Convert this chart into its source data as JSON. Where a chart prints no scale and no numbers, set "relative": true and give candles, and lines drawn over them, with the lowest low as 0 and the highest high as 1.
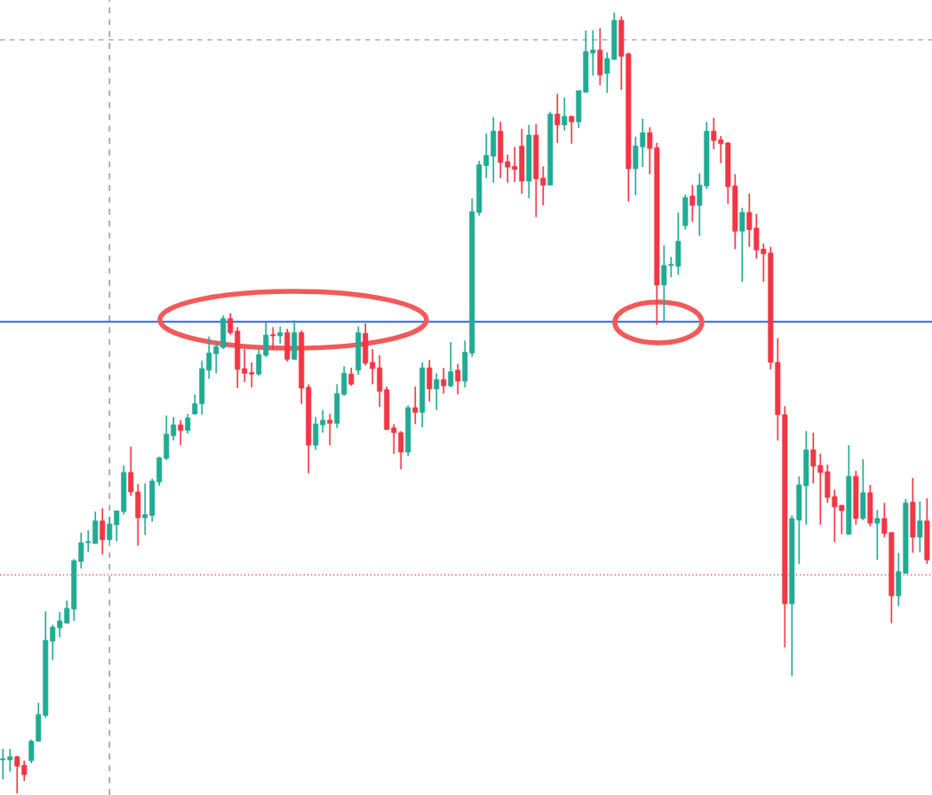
{
  "chart_data": {
    "type": "candlestick",
    "relative": true,
    "legend": false,
    "categories": [
      null,
      null,
      null,
      null,
      null,
      null,
      null,
      null,
      null,
      null,
      null,
      null,
      null,
      null,
      null,
      null,
      null,
      null,
      null,
      null,
      null,
      null,
      null,
      null,
      null,
      null,
      null,
      null,
      null,
      null,
      null,
      null,
      null,
      null,
      null,
      null,
      null,
      null,
      null,
      null,
      null,
      null,
      null,
      null,
      null,
      null,
      null,
      null,
      null,
      null,
      null,
      null,
      null,
      null,
      null,
      null,
      null,
      null,
      null,
      null,
      null,
      null,
      null,
      null,
      null,
      null,
      null,
      null,
      null,
      null,
      null,
      null,
      null,
      null,
      null,
      null,
      null,
      null,
      null,
      null,
      null,
      null,
      null,
      null,
      null,
      null,
      null,
      null,
      null,
      null,
      null,
      null,
      null,
      null,
      null,
      null,
      null,
      null,
      null,
      null,
      null,
      null,
      null,
      null,
      null,
      null,
      null,
      null,
      null,
      null,
      null,
      null,
      null,
      null,
      null,
      null,
      null,
      null,
      null,
      null,
      null,
      null,
      null,
      null,
      null,
      null,
      null,
      null,
      null,
      null,
      null
    ],
    "ohlc": [
      [
        0.043,
        0.057,
        0.018,
        0.043
      ],
      [
        0.043,
        0.057,
        0.028,
        0.047
      ],
      [
        0.047,
        0.048,
        0,
        0.035
      ],
      [
        0.036,
        0.042,
        0.016,
        0.024
      ],
      [
        0.042,
        0.069,
        0.039,
        0.067
      ],
      [
        0.067,
        0.116,
        0.066,
        0.101
      ],
      [
        0.1,
        0.233,
        0.097,
        0.196
      ],
      [
        0.195,
        0.216,
        0.171,
        0.213
      ],
      [
        0.212,
        0.232,
        0.2,
        0.221
      ],
      [
        0.218,
        0.247,
        0.218,
        0.237
      ],
      [
        0.236,
        0.3,
        0.221,
        0.298
      ],
      [
        0.297,
        0.334,
        0.288,
        0.321
      ],
      [
        0.321,
        0.337,
        0.309,
        0.321
      ],
      [
        0.32,
        0.361,
        0.32,
        0.349
      ],
      [
        0.349,
        0.365,
        0.306,
        0.325
      ],
      [
        0.325,
        0.354,
        0.323,
        0.345
      ],
      [
        0.344,
        0.362,
        0.323,
        0.362
      ],
      [
        0.361,
        0.42,
        0.357,
        0.411
      ],
      [
        0.411,
        0.444,
        0.381,
        0.386
      ],
      [
        0.386,
        0.396,
        0.317,
        0.353
      ],
      [
        0.353,
        0.397,
        0.331,
        0.357
      ],
      [
        0.356,
        0.403,
        0.348,
        0.4
      ],
      [
        0.399,
        0.431,
        0.394,
        0.43
      ],
      [
        0.429,
        0.484,
        0.427,
        0.46
      ],
      [
        0.458,
        0.482,
        0.452,
        0.472
      ],
      [
        0.472,
        0.478,
        0.446,
        0.465
      ],
      [
        0.465,
        0.486,
        0.461,
        0.481
      ],
      [
        0.486,
        0.511,
        0.485,
        0.499
      ],
      [
        0.499,
        0.554,
        0.485,
        0.544
      ],
      [
        0.542,
        0.585,
        0.531,
        0.564
      ],
      [
        0.563,
        0.579,
        0.538,
        0.572
      ],
      [
        0.571,
        0.612,
        0.569,
        0.608
      ],
      [
        0.608,
        0.615,
        0.587,
        0.59
      ],
      [
        0.592,
        0.597,
        0.519,
        0.543
      ],
      [
        0.544,
        0.569,
        0.527,
        0.538
      ],
      [
        0.539,
        0.552,
        0.52,
        0.537
      ],
      [
        0.537,
        0.568,
        0.535,
        0.562
      ],
      [
        0.561,
        0.603,
        0.559,
        0.587
      ],
      [
        0.587,
        0.597,
        0.568,
        0.586
      ],
      [
        0.586,
        0.598,
        0.576,
        0.59
      ],
      [
        0.59,
        0.595,
        0.553,
        0.556
      ],
      [
        0.556,
        0.606,
        0.555,
        0.59
      ],
      [
        0.59,
        0.593,
        0.499,
        0.519
      ],
      [
        0.52,
        0.524,
        0.41,
        0.446
      ],
      [
        0.446,
        0.482,
        0.44,
        0.473
      ],
      [
        0.472,
        0.491,
        0.462,
        0.478
      ],
      [
        0.478,
        0.486,
        0.446,
        0.474
      ],
      [
        0.474,
        0.524,
        0.468,
        0.512
      ],
      [
        0.511,
        0.547,
        0.509,
        0.538
      ],
      [
        0.537,
        0.545,
        0.522,
        0.524
      ],
      [
        0.542,
        0.598,
        0.536,
        0.59
      ],
      [
        0.589,
        0.602,
        0.548,
        0.551
      ],
      [
        0.552,
        0.569,
        0.524,
        0.544
      ],
      [
        0.545,
        0.561,
        0.495,
        0.515
      ],
      [
        0.517,
        0.521,
        0.466,
        0.466
      ],
      [
        0.468,
        0.473,
        0.435,
        0.462
      ],
      [
        0.462,
        0.464,
        0.415,
        0.437
      ],
      [
        0.437,
        0.497,
        0.432,
        0.494
      ],
      [
        0.494,
        0.521,
        0.473,
        0.488
      ],
      [
        0.488,
        0.552,
        0.469,
        0.545
      ],
      [
        0.545,
        0.555,
        0.502,
        0.518
      ],
      [
        0.518,
        0.538,
        0.491,
        0.53
      ],
      [
        0.53,
        0.545,
        0.512,
        0.522
      ],
      [
        0.522,
        0.578,
        0.52,
        0.54
      ],
      [
        0.542,
        0.55,
        0.511,
        0.528
      ],
      [
        0.528,
        0.58,
        0.52,
        0.565
      ],
      [
        0.564,
        0.762,
        0.559,
        0.745
      ],
      [
        0.744,
        0.81,
        0.74,
        0.805
      ],
      [
        0.804,
        0.845,
        0.788,
        0.817
      ],
      [
        0.816,
        0.866,
        0.782,
        0.848
      ],
      [
        0.848,
        0.86,
        0.788,
        0.808
      ],
      [
        0.809,
        0.818,
        0.782,
        0.802
      ],
      [
        0.803,
        0.828,
        0.783,
        0.799
      ],
      [
        0.829,
        0.851,
        0.768,
        0.784
      ],
      [
        0.784,
        0.856,
        0.762,
        0.843
      ],
      [
        0.843,
        0.857,
        0.738,
        0.787
      ],
      [
        0.788,
        0.803,
        0.753,
        0.779
      ],
      [
        0.779,
        0.873,
        0.779,
        0.87
      ],
      [
        0.87,
        0.896,
        0.833,
        0.856
      ],
      [
        0.856,
        0.891,
        0.849,
        0.867
      ],
      [
        0.867,
        0.868,
        0.832,
        0.86
      ],
      [
        0.86,
        0.9,
        0.852,
        0.9
      ],
      [
        0.898,
        0.977,
        0.897,
        0.95
      ],
      [
        0.948,
        0.977,
        0.919,
        0.952
      ],
      [
        0.952,
        0.98,
        0.907,
        0.92
      ],
      [
        0.922,
        0.949,
        0.897,
        0.941
      ],
      [
        0.94,
        1,
        0.939,
        0.99
      ],
      [
        0.99,
        0.995,
        0.901,
        0.944
      ],
      [
        0.947,
        0.949,
        0.758,
        0.8
      ],
      [
        0.8,
        0.841,
        0.766,
        0.829
      ],
      [
        0.828,
        0.864,
        0.802,
        0.846
      ],
      [
        0.846,
        0.853,
        0.793,
        0.826
      ],
      [
        0.827,
        0.833,
        0.6,
        0.651
      ],
      [
        0.651,
        0.702,
        0.604,
        0.676
      ],
      [
        0.676,
        0.687,
        0.661,
        0.676
      ],
      [
        0.675,
        0.744,
        0.664,
        0.707
      ],
      [
        0.727,
        0.767,
        0.722,
        0.763
      ],
      [
        0.765,
        0.779,
        0.732,
        0.753
      ],
      [
        0.753,
        0.794,
        0.714,
        0.779
      ],
      [
        0.778,
        0.86,
        0.774,
        0.848
      ],
      [
        0.848,
        0.865,
        0.825,
        0.836
      ],
      [
        0.837,
        0.842,
        0.807,
        0.832
      ],
      [
        0.833,
        0.834,
        0.755,
        0.777
      ],
      [
        0.778,
        0.793,
        0.697,
        0.72
      ],
      [
        0.72,
        0.75,
        0.655,
        0.744
      ],
      [
        0.744,
        0.768,
        0.7,
        0.722
      ],
      [
        0.724,
        0.742,
        0.685,
        0.696
      ],
      [
        0.697,
        0.704,
        0.655,
        0.691
      ],
      [
        0.692,
        0.7,
        0.543,
        0.552
      ],
      [
        0.552,
        0.583,
        0.452,
        0.485
      ],
      [
        0.485,
        0.496,
        0.187,
        0.243
      ],
      [
        0.243,
        0.356,
        0.15,
        0.352
      ],
      [
        0.35,
        0.406,
        0.294,
        0.395
      ],
      [
        0.394,
        0.464,
        0.344,
        0.44
      ],
      [
        0.44,
        0.462,
        0.397,
        0.419
      ],
      [
        0.42,
        0.435,
        0.344,
        0.411
      ],
      [
        0.412,
        0.421,
        0.372,
        0.379
      ],
      [
        0.38,
        0.389,
        0.322,
        0.367
      ],
      [
        0.369,
        0.369,
        0.332,
        0.362
      ],
      [
        0.332,
        0.446,
        0.331,
        0.406
      ],
      [
        0.406,
        0.413,
        0.344,
        0.352
      ],
      [
        0.352,
        0.428,
        0.35,
        0.385
      ],
      [
        0.385,
        0.395,
        0.342,
        0.346
      ],
      [
        0.346,
        0.363,
        0.299,
        0.352
      ],
      [
        0.352,
        0.372,
        0.328,
        0.333
      ],
      [
        0.334,
        0.334,
        0.218,
        0.253
      ],
      [
        0.253,
        0.308,
        0.24,
        0.284
      ],
      [
        0.282,
        0.377,
        0.281,
        0.372
      ],
      [
        0.373,
        0.404,
        0.308,
        0.328
      ],
      [
        0.328,
        0.374,
        0.309,
        0.349
      ],
      [
        0.349,
        0.378,
        0.294,
        0.299
      ]
    ],
    "colors": [
      "#22ab94",
      "#22ab94",
      "#f23645",
      "#f23645",
      "#22ab94",
      "#22ab94",
      "#22ab94",
      "#22ab94",
      "#22ab94",
      "#22ab94",
      "#22ab94",
      "#22ab94",
      "#22ab94",
      "#22ab94",
      "#f23645",
      "#22ab94",
      "#22ab94",
      "#22ab94",
      "#f23645",
      "#f23645",
      "#22ab94",
      "#22ab94",
      "#22ab94",
      "#22ab94",
      "#22ab94",
      "#f23645",
      "#22ab94",
      "#22ab94",
      "#22ab94",
      "#22ab94",
      "#22ab94",
      "#22ab94",
      "#f23645",
      "#f23645",
      "#f23645",
      "#f23645",
      "#22ab94",
      "#22ab94",
      "#f23645",
      "#22ab94",
      "#f23645",
      "#22ab94",
      "#f23645",
      "#f23645",
      "#22ab94",
      "#22ab94",
      "#f23645",
      "#22ab94",
      "#22ab94",
      "#f23645",
      "#22ab94",
      "#f23645",
      "#f23645",
      "#f23645",
      "#f23645",
      "#f23645",
      "#f23645",
      "#22ab94",
      "#f23645",
      "#22ab94",
      "#f23645",
      "#22ab94",
      "#f23645",
      "#22ab94",
      "#f23645",
      "#22ab94",
      "#22ab94",
      "#22ab94",
      "#22ab94",
      "#22ab94",
      "#f23645",
      "#f23645",
      "#f23645",
      "#f23645",
      "#22ab94",
      "#f23645",
      "#f23645",
      "#22ab94",
      "#f23645",
      "#22ab94",
      "#f23645",
      "#22ab94",
      "#22ab94",
      "#22ab94",
      "#f23645",
      "#22ab94",
      "#22ab94",
      "#f23645",
      "#f23645",
      "#22ab94",
      "#22ab94",
      "#f23645",
      "#f23645",
      "#22ab94",
      "#22ab94",
      "#22ab94",
      "#22ab94",
      "#f23645",
      "#22ab94",
      "#22ab94",
      "#f23645",
      "#f23645",
      "#f23645",
      "#f23645",
      "#22ab94",
      "#f23645",
      "#f23645",
      "#f23645",
      "#f23645",
      "#f23645",
      "#f23645",
      "#22ab94",
      "#22ab94",
      "#22ab94",
      "#f23645",
      "#f23645",
      "#f23645",
      "#f23645",
      "#f23645",
      "#22ab94",
      "#f23645",
      "#22ab94",
      "#f23645",
      "#22ab94",
      "#f23645",
      "#f23645",
      "#22ab94",
      "#22ab94",
      "#f23645",
      "#22ab94",
      "#f23645"
    ],
    "ref_lines": [
      {
        "axis": "y",
        "value": 0.604,
        "color": "#2962ff",
        "line_style": "solid"
      },
      {
        "axis": "y",
        "value": 0.965,
        "color": "#9e9e9e",
        "line_style": "dashed"
      },
      {
        "axis": "y",
        "value": 0.28,
        "color": "#f23645",
        "line_style": "dotted"
      }
    ]
  }
}
